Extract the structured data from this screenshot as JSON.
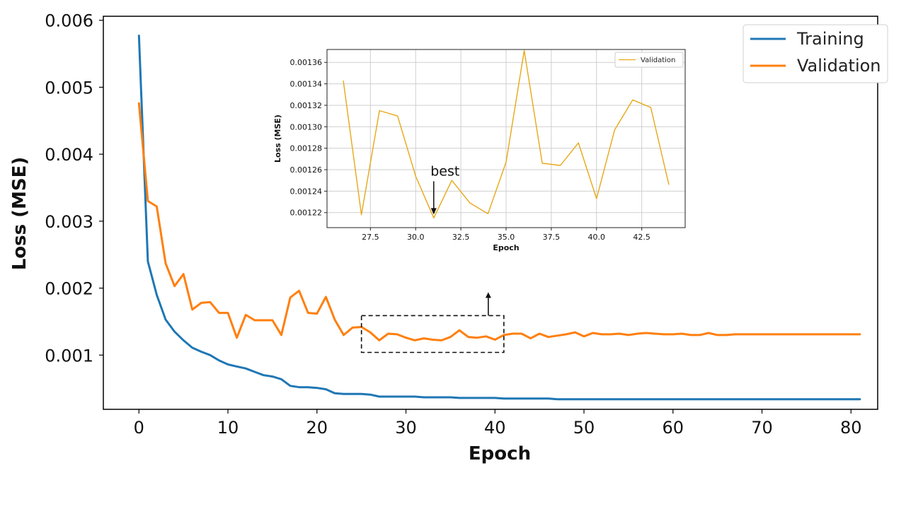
{
  "chart_data": [
    {
      "type": "line",
      "title": "",
      "xlabel": "Epoch",
      "ylabel": "Loss (MSE)",
      "xlim": [
        -4,
        83
      ],
      "ylim": [
        0.00019,
        0.00606
      ],
      "xticks": [
        0,
        10,
        20,
        30,
        40,
        50,
        60,
        70,
        80
      ],
      "xtick_labels": [
        "0",
        "10",
        "20",
        "30",
        "40",
        "50",
        "60",
        "70",
        "80"
      ],
      "yticks": [
        0.001,
        0.002,
        0.003,
        0.004,
        0.005,
        0.006
      ],
      "ytick_labels": [
        "0.001",
        "0.002",
        "0.003",
        "0.004",
        "0.005",
        "0.006"
      ],
      "grid": false,
      "legend_position": "top-right",
      "x": [
        0,
        1,
        2,
        3,
        4,
        5,
        6,
        7,
        8,
        9,
        10,
        11,
        12,
        13,
        14,
        15,
        16,
        17,
        18,
        19,
        20,
        21,
        22,
        23,
        24,
        25,
        26,
        27,
        28,
        29,
        30,
        31,
        32,
        33,
        34,
        35,
        36,
        37,
        38,
        39,
        40,
        41,
        42,
        43,
        44,
        45,
        46,
        47,
        48,
        49,
        50,
        51,
        52,
        53,
        54,
        55,
        56,
        57,
        58,
        59,
        60,
        61,
        62,
        63,
        64,
        65,
        66,
        67,
        68,
        69,
        70,
        71,
        72,
        73,
        74,
        75,
        76,
        77,
        78,
        79,
        80,
        81
      ],
      "series": [
        {
          "name": "Training",
          "color": "#1f77b4",
          "values": [
            0.00577,
            0.0024,
            0.0019,
            0.00153,
            0.00135,
            0.00122,
            0.00111,
            0.00105,
            0.001,
            0.00092,
            0.00086,
            0.00083,
            0.0008,
            0.00075,
            0.0007,
            0.00068,
            0.00064,
            0.00054,
            0.00052,
            0.00052,
            0.00051,
            0.00049,
            0.00043,
            0.00042,
            0.00042,
            0.00042,
            0.00041,
            0.00038,
            0.00038,
            0.00038,
            0.00038,
            0.00038,
            0.00037,
            0.00037,
            0.00037,
            0.00037,
            0.00036,
            0.00036,
            0.00036,
            0.00036,
            0.00036,
            0.00035,
            0.00035,
            0.00035,
            0.00035,
            0.00035,
            0.00035,
            0.00034,
            0.00034,
            0.00034,
            0.00034,
            0.00034,
            0.00034,
            0.00034,
            0.00034,
            0.00034,
            0.00034,
            0.00034,
            0.00034,
            0.00034,
            0.00034,
            0.00034,
            0.00034,
            0.00034,
            0.00034,
            0.00034,
            0.00034,
            0.00034,
            0.00034,
            0.00034,
            0.00034,
            0.00034,
            0.00034,
            0.00034,
            0.00034,
            0.00034,
            0.00034,
            0.00034,
            0.00034,
            0.00034,
            0.00034,
            0.00034
          ]
        },
        {
          "name": "Validation",
          "color": "#ff7f0e",
          "values": [
            0.00476,
            0.0033,
            0.00322,
            0.00237,
            0.00203,
            0.00221,
            0.00168,
            0.00178,
            0.00179,
            0.00163,
            0.00163,
            0.00126,
            0.0016,
            0.00152,
            0.00152,
            0.00152,
            0.0013,
            0.00186,
            0.00196,
            0.00163,
            0.00162,
            0.00187,
            0.00153,
            0.0013,
            0.00141,
            0.00142,
            0.00134,
            0.00122,
            0.00132,
            0.00131,
            0.00126,
            0.00122,
            0.00125,
            0.00123,
            0.00122,
            0.00127,
            0.00137,
            0.00127,
            0.00126,
            0.00128,
            0.00123,
            0.0013,
            0.00132,
            0.00132,
            0.00125,
            0.00132,
            0.00127,
            0.00129,
            0.00131,
            0.00134,
            0.00128,
            0.00133,
            0.00131,
            0.00131,
            0.00132,
            0.0013,
            0.00132,
            0.00133,
            0.00132,
            0.00131,
            0.00131,
            0.00132,
            0.0013,
            0.0013,
            0.00133,
            0.0013,
            0.0013,
            0.00131,
            0.00131,
            0.00131,
            0.00131,
            0.00131,
            0.00131,
            0.00131,
            0.00131,
            0.00131,
            0.00131,
            0.00131,
            0.00131,
            0.00131,
            0.00131,
            0.00131
          ]
        }
      ],
      "zoom_box": {
        "x_range": [
          25,
          41
        ],
        "y_range": [
          0.00104,
          0.00159
        ]
      }
    },
    {
      "type": "line",
      "title": "",
      "xlabel": "Epoch",
      "ylabel": "Loss (MSE)",
      "xlim": [
        25.1,
        44.9
      ],
      "ylim": [
        0.001206,
        0.001372
      ],
      "xticks": [
        27.5,
        30,
        32.5,
        35,
        37.5,
        40,
        42.5
      ],
      "xtick_labels": [
        "27.5",
        "30.0",
        "32.5",
        "35.0",
        "37.5",
        "40.0",
        "42.5"
      ],
      "yticks": [
        0.00122,
        0.00124,
        0.00126,
        0.00128,
        0.0013,
        0.00132,
        0.00134,
        0.00136
      ],
      "ytick_labels": [
        "0.00122",
        "0.00124",
        "0.00126",
        "0.00128",
        "0.00130",
        "0.00132",
        "0.00134",
        "0.00136"
      ],
      "grid": true,
      "legend_position": "top-right",
      "x": [
        26,
        27,
        28,
        29,
        30,
        31,
        32,
        33,
        34,
        35,
        36,
        37,
        38,
        39,
        40,
        41,
        42,
        43,
        44
      ],
      "series": [
        {
          "name": "Validation",
          "color": "#e6a817",
          "values": [
            0.001343,
            0.001218,
            0.001315,
            0.00131,
            0.001254,
            0.001215,
            0.00125,
            0.001229,
            0.001219,
            0.001267,
            0.001371,
            0.001266,
            0.001264,
            0.001285,
            0.001233,
            0.001297,
            0.001325,
            0.001318,
            0.001246
          ]
        }
      ],
      "annotation": {
        "text": "best",
        "x": 31,
        "y": 0.001215
      }
    }
  ]
}
